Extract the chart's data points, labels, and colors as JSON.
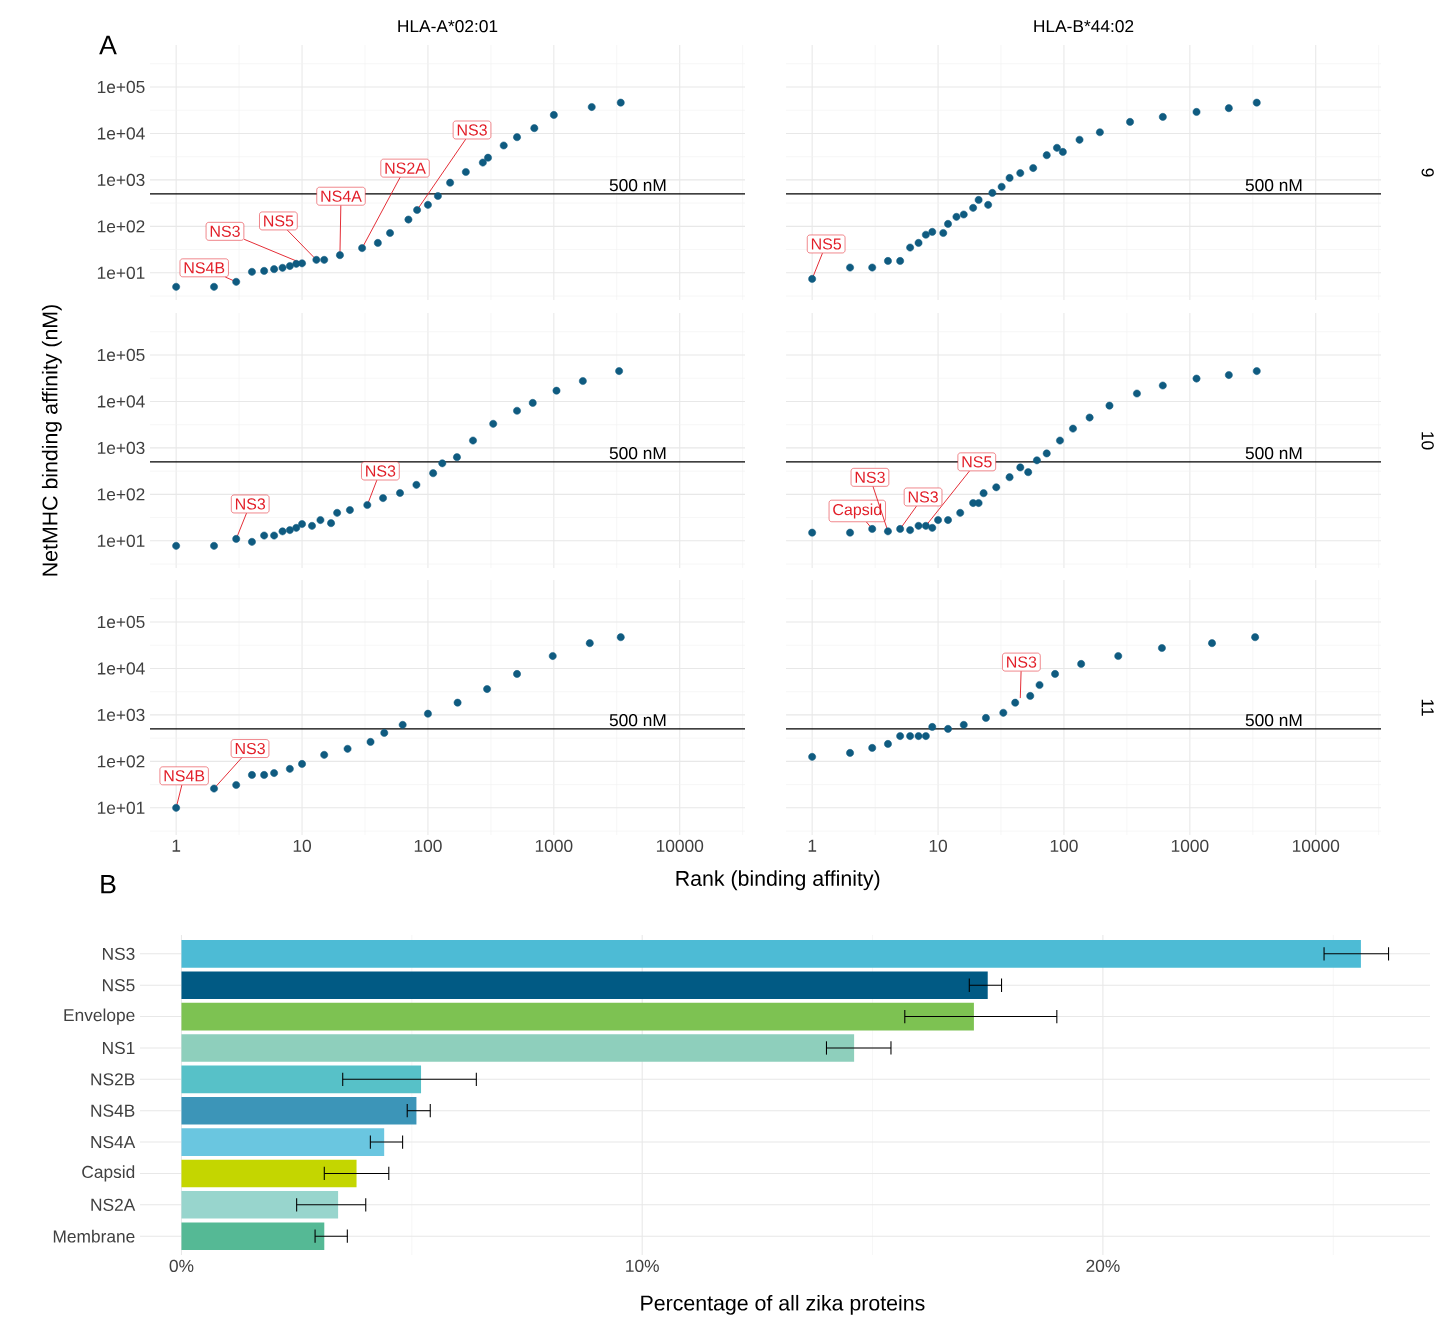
{
  "chart_data": [
    {
      "type": "scatter",
      "title": "HLA-A*02:01",
      "log": "xy",
      "color": "#0f5b80",
      "grid": true,
      "tick_labels": "y",
      "xlim": [
        0.62,
        33000
      ],
      "ylim": [
        2.6,
        800000
      ],
      "xticks": [
        1,
        10,
        100,
        1000,
        10000
      ],
      "yticks": [
        {
          "value": 10,
          "label": "1e+01"
        },
        {
          "value": 100,
          "label": "1e+02"
        },
        {
          "value": 1000,
          "label": "1e+03"
        },
        {
          "value": 10000,
          "label": "1e+04"
        },
        {
          "value": 100000,
          "label": "1e+05"
        }
      ],
      "x": [
        1,
        2,
        3,
        4,
        5,
        6,
        7,
        8,
        9,
        10,
        13,
        15,
        20,
        30,
        40,
        50,
        70,
        82,
        100,
        120,
        150,
        200,
        273,
        300,
        400,
        510,
        700,
        1000,
        2000,
        3400
      ],
      "values": [
        5,
        5,
        6.4,
        10.5,
        11,
        12,
        12.8,
        14,
        15.6,
        16,
        19,
        19,
        24,
        34,
        44,
        72,
        140,
        225,
        290,
        450,
        870,
        1480,
        2360,
        3000,
        5500,
        8300,
        13000,
        25000,
        37000,
        46000
      ],
      "ref_lines": [
        {
          "axis": "y",
          "value": 500,
          "label": "500 nM"
        }
      ],
      "annotations": [
        "A",
        {
          "text": "NS4B",
          "x": 3,
          "y": 6.4
        },
        {
          "text": "NS3",
          "x": 10,
          "y": 16
        },
        {
          "text": "NS5",
          "x": 13,
          "y": 19
        },
        {
          "text": "NS4A",
          "x": 20,
          "y": 24
        },
        {
          "text": "NS2A",
          "x": 30,
          "y": 34
        },
        {
          "text": "NS3",
          "x": 82,
          "y": 225
        }
      ]
    },
    {
      "type": "scatter",
      "title": "HLA-B*44:02",
      "y2label": "9",
      "log": "xy",
      "color": "#0f5b80",
      "grid": true,
      "tick_labels": false,
      "xlim": [
        0.62,
        33000
      ],
      "ylim": [
        2.6,
        800000
      ],
      "xticks": [
        1,
        10,
        100,
        1000,
        10000
      ],
      "yticks": [
        {
          "value": 10,
          "label": null
        },
        {
          "value": 100,
          "label": null
        },
        {
          "value": 1000,
          "label": null
        },
        {
          "value": 10000,
          "label": null
        },
        {
          "value": 100000,
          "label": null
        }
      ],
      "x": [
        1,
        2,
        3,
        4,
        5,
        6,
        7,
        8,
        9,
        11,
        12,
        14,
        16,
        19,
        21,
        25,
        27,
        32,
        37,
        45,
        57,
        73,
        88,
        98,
        133,
        193,
        335,
        610,
        1130,
        2040,
        3400
      ],
      "values": [
        7.4,
        13,
        13,
        18,
        18,
        35,
        44,
        66,
        76,
        72,
        113,
        160,
        180,
        250,
        370,
        290,
        525,
        710,
        1100,
        1400,
        1800,
        3400,
        4900,
        4000,
        7300,
        10600,
        17700,
        22700,
        29000,
        35000,
        46000
      ],
      "ref_lines": [
        {
          "axis": "y",
          "value": 500,
          "label": "500 nM"
        }
      ],
      "annotations": [
        {
          "text": "NS5",
          "x": 1,
          "y": 7.4
        }
      ]
    },
    {
      "type": "scatter",
      "ylabel": "NetMHC binding affinity (nM)",
      "log": "xy",
      "color": "#0f5b80",
      "grid": true,
      "tick_labels": "y",
      "xlim": [
        0.62,
        33000
      ],
      "ylim": [
        2.6,
        800000
      ],
      "xticks": [
        1,
        10,
        100,
        1000,
        10000
      ],
      "yticks": [
        {
          "value": 10,
          "label": "1e+01"
        },
        {
          "value": 100,
          "label": "1e+02"
        },
        {
          "value": 1000,
          "label": "1e+03"
        },
        {
          "value": 10000,
          "label": "1e+04"
        },
        {
          "value": 100000,
          "label": "1e+05"
        }
      ],
      "x": [
        1,
        2,
        3,
        4,
        5,
        6,
        7,
        8,
        9,
        10,
        12,
        14,
        17,
        19,
        24,
        33,
        44,
        60,
        81,
        110,
        130,
        170,
        228,
        330,
        510,
        680,
        1050,
        1700,
        3300
      ],
      "values": [
        7.8,
        7.8,
        11,
        9.5,
        13,
        13,
        16,
        17,
        19,
        23,
        21,
        28,
        24,
        40,
        46,
        59,
        83,
        107,
        160,
        285,
        466,
        630,
        1440,
        3300,
        6300,
        9300,
        17000,
        27500,
        45000
      ],
      "ref_lines": [
        {
          "axis": "y",
          "value": 500,
          "label": "500 nM"
        }
      ],
      "annotations": [
        {
          "text": "NS3",
          "x": 3,
          "y": 11
        },
        {
          "text": "NS3",
          "x": 33,
          "y": 59
        }
      ]
    },
    {
      "type": "scatter",
      "y2label": "10",
      "log": "xy",
      "color": "#0f5b80",
      "grid": true,
      "tick_labels": false,
      "xlim": [
        0.62,
        33000
      ],
      "ylim": [
        2.6,
        800000
      ],
      "xticks": [
        1,
        10,
        100,
        1000,
        10000
      ],
      "yticks": [
        {
          "value": 10,
          "label": null
        },
        {
          "value": 100,
          "label": null
        },
        {
          "value": 1000,
          "label": null
        },
        {
          "value": 10000,
          "label": null
        },
        {
          "value": 100000,
          "label": null
        }
      ],
      "x": [
        1,
        2,
        3,
        4,
        5,
        6,
        7,
        8,
        9,
        10,
        12,
        15,
        19,
        21,
        23,
        29,
        37,
        45,
        52,
        61,
        73,
        93,
        118,
        160,
        230,
        380,
        610,
        1130,
        2040,
        3400
      ],
      "values": [
        15,
        15,
        18,
        16,
        18,
        17,
        21,
        21,
        19,
        28,
        28,
        40,
        65,
        65,
        106,
        142,
        234,
        380,
        300,
        540,
        760,
        1440,
        2600,
        4500,
        8100,
        14800,
        22000,
        31000,
        37000,
        45000
      ],
      "ref_lines": [
        {
          "axis": "y",
          "value": 500,
          "label": "500 nM"
        }
      ],
      "annotations": [
        {
          "text": "Capsid",
          "x": 3,
          "y": 18
        },
        {
          "text": "NS3",
          "x": 4,
          "y": 16
        },
        {
          "text": "NS3",
          "x": 5,
          "y": 18
        },
        {
          "text": "NS5",
          "x": 8,
          "y": 21
        }
      ]
    },
    {
      "type": "scatter",
      "xlabel": "Rank (binding affinity)",
      "log": "xy",
      "color": "#0f5b80",
      "grid": true,
      "xlim": [
        0.62,
        33000
      ],
      "ylim": [
        2.6,
        800000
      ],
      "xticks": [
        1,
        10,
        100,
        1000,
        10000
      ],
      "yticks": [
        {
          "value": 10,
          "label": "1e+01"
        },
        {
          "value": 100,
          "label": "1e+02"
        },
        {
          "value": 1000,
          "label": "1e+03"
        },
        {
          "value": 10000,
          "label": "1e+04"
        },
        {
          "value": 100000,
          "label": "1e+05"
        }
      ],
      "x": [
        1,
        2,
        3,
        4,
        5,
        6,
        8,
        10,
        15,
        23,
        35,
        45,
        63,
        100,
        172,
        295,
        510,
        980,
        1930,
        3400
      ],
      "values": [
        10,
        26,
        31,
        51,
        51,
        56,
        69,
        88,
        138,
        186,
        262,
        410,
        610,
        1060,
        1830,
        3600,
        7600,
        18500,
        35000,
        47000
      ],
      "ref_lines": [
        {
          "axis": "y",
          "value": 500,
          "label": "500 nM"
        }
      ],
      "annotations": [
        {
          "text": "NS4B",
          "x": 1,
          "y": 10
        },
        {
          "text": "NS3",
          "x": 2,
          "y": 26
        }
      ]
    },
    {
      "type": "scatter",
      "y2label": "11",
      "log": "xy",
      "color": "#0f5b80",
      "grid": true,
      "tick_labels": "x",
      "xlim": [
        0.62,
        33000
      ],
      "ylim": [
        2.6,
        800000
      ],
      "xticks": [
        1,
        10,
        100,
        1000,
        10000
      ],
      "yticks": [
        {
          "value": 10,
          "label": null
        },
        {
          "value": 100,
          "label": null
        },
        {
          "value": 1000,
          "label": null
        },
        {
          "value": 10000,
          "label": null
        },
        {
          "value": 100000,
          "label": null
        }
      ],
      "x": [
        1,
        2,
        3,
        4,
        5,
        6,
        7,
        8,
        9,
        12,
        16,
        24,
        33,
        41,
        54,
        64,
        85,
        137,
        270,
        600,
        1500,
        3300
      ],
      "values": [
        125,
        152,
        195,
        237,
        350,
        350,
        350,
        350,
        550,
        500,
        610,
        860,
        1110,
        1830,
        2560,
        4400,
        7600,
        12500,
        18500,
        27500,
        35000,
        47000
      ],
      "ref_lines": [
        {
          "axis": "y",
          "value": 500,
          "label": "500 nM"
        }
      ],
      "annotations": [
        {
          "text": "NS3",
          "x": 45,
          "y": 2300
        }
      ]
    },
    {
      "type": "bar",
      "orientation": "horizontal",
      "xlabel": "Percentage of all zika proteins",
      "grid": true,
      "categories": [
        "NS3",
        "NS5",
        "Envelope",
        "NS1",
        "NS2B",
        "NS4B",
        "NS4A",
        "Capsid",
        "NS2A",
        "Membrane"
      ],
      "values": [
        25.6,
        17.5,
        17.2,
        14.6,
        5.2,
        5.1,
        4.4,
        3.8,
        3.4,
        3.1
      ],
      "errors": [
        [
          24.8,
          26.2
        ],
        [
          17.1,
          17.8
        ],
        [
          15.7,
          19.0
        ],
        [
          14.0,
          15.4
        ],
        [
          3.5,
          6.4
        ],
        [
          4.9,
          5.4
        ],
        [
          4.1,
          4.8
        ],
        [
          3.1,
          4.5
        ],
        [
          2.5,
          4.0
        ],
        [
          2.9,
          3.6
        ]
      ],
      "colors": [
        "#4dbbd5",
        "#015a84",
        "#7dc252",
        "#8ecfbc",
        "#57c1c8",
        "#3c95b8",
        "#6ac6e0",
        "#c4d600",
        "#98d5cd",
        "#55b995"
      ],
      "xlim": [
        -0.9,
        27.1
      ],
      "xticks": [
        {
          "value": 0,
          "label": "0%"
        },
        {
          "value": 10,
          "label": "10%"
        },
        {
          "value": 20,
          "label": "20%"
        }
      ],
      "annotations": [
        "B"
      ]
    }
  ]
}
